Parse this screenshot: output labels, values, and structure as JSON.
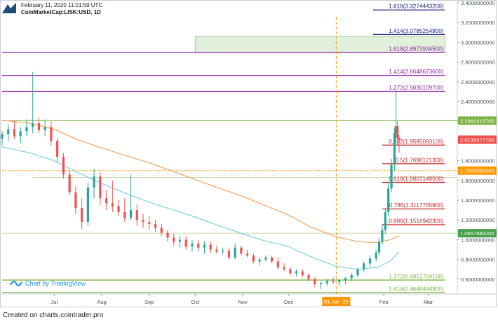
{
  "header": {
    "date": "February 11, 2020 11:01:59 UTC",
    "symbol": "CoinMarketCap:LISK:USD, 1D"
  },
  "branding": {
    "chart_by": "Chart by TradingView"
  },
  "footer": {
    "credit": "Created on charts.cointrader.pro"
  },
  "icons": {
    "logo": "cointrader-logo-icon",
    "tradingview": "tradingview-icon"
  },
  "colors": {
    "up": "#26a69a",
    "down": "#ef5350",
    "ma_long": "#f5a25d",
    "ma_short": "#7fd1e0",
    "fib_purple": "#8e24aa",
    "fib_red": "#c62828",
    "fib_green": "#7cb342",
    "level_orange": "#ff9800",
    "zone_fill": "#d7ebcd",
    "grid": "#e9edf2",
    "axis_text": "#4c525e"
  },
  "chart_data": {
    "type": "candlestick",
    "title": "",
    "xlabel": "",
    "ylabel": "",
    "ylim": [
      0.45,
      3.4
    ],
    "grid": false,
    "y_ticks": [
      "3.4000000000",
      "3.2000000000",
      "3.0000000000",
      "2.8000000000",
      "2.6000000000",
      "2.4000000000",
      "2.2000000000",
      "2.0000000000",
      "1.8000000000",
      "1.6000000000",
      "1.4000000000",
      "1.2000000000",
      "1.0000000000",
      "0.8000000000",
      "0.6000000000"
    ],
    "x_ticks": [
      {
        "label": "Jul",
        "date": "2019-07-01"
      },
      {
        "label": "Aug",
        "date": "2019-08-01"
      },
      {
        "label": "Sep",
        "date": "2019-09-01"
      },
      {
        "label": "Oct",
        "date": "2019-10-01"
      },
      {
        "label": "Nov",
        "date": "2019-11-01"
      },
      {
        "label": "Dec",
        "date": "2019-12-01"
      },
      {
        "label": "Feb",
        "date": "2020-02-01"
      },
      {
        "label": "Mar",
        "date": "2020-03-01"
      }
    ],
    "x_range": [
      "2019-05-28",
      "2020-03-20"
    ],
    "marker": {
      "date": "2020-01-01",
      "label": "01 Jan '20"
    },
    "price_labels": [
      {
        "value": 2.20603157,
        "text": "2.2060315700",
        "color": "#7cb342"
      },
      {
        "value": 2.01354777,
        "text": "2.0135477700",
        "color": "#ef5350"
      },
      {
        "value": 1.7,
        "text": "1.7000000000",
        "color": "#ff9800"
      },
      {
        "value": 1.06579832,
        "text": "1.0657983200",
        "color": "#43a047"
      }
    ],
    "fib_levels": [
      {
        "label": "1.618(3.3274443200)",
        "value": 3.32744432,
        "color": "#1a237e",
        "from": "2020-01-25",
        "to": "2020-03-12"
      },
      {
        "label": "1.414(3.0785254900)",
        "value": 3.07852549,
        "color": "#1a237e",
        "from": "2020-01-25",
        "to": "2020-03-12"
      },
      {
        "label": "1.618(2.8973934500)",
        "value": 2.89739345,
        "color": "#8e24aa",
        "from": "2019-05-28",
        "to": "2020-03-12"
      },
      {
        "label": "1.414(2.6648673600)",
        "value": 2.66486736,
        "color": "#8e24aa",
        "from": "2019-05-28",
        "to": "2020-03-12"
      },
      {
        "label": "1.272(2.5030109700)",
        "value": 2.50301097,
        "color": "#8e24aa",
        "from": "2019-05-28",
        "to": "2020-03-12"
      },
      {
        "label": "0.382(1.9585093100)",
        "value": 1.95850931,
        "color": "#c62828",
        "from": "2020-01-31",
        "to": "2020-03-12"
      },
      {
        "label": "0.5(1.7696121300)",
        "value": 1.76961213,
        "color": "#c62828",
        "from": "2020-01-31",
        "to": "2020-03-12"
      },
      {
        "label": "0.618(1.5807149500)",
        "value": 1.58071495,
        "color": "#c62828",
        "from": "2020-01-31",
        "to": "2020-03-12"
      },
      {
        "label": "0.786(1.3117765900)",
        "value": 1.31177659,
        "color": "#c62828",
        "from": "2020-01-31",
        "to": "2020-03-12"
      },
      {
        "label": "0.886(1.1516942300)",
        "value": 1.15169423,
        "color": "#c62828",
        "from": "2020-01-31",
        "to": "2020-03-12"
      },
      {
        "label": "1.272(0.5912704100)",
        "value": 0.59127041,
        "color": "#7cb342",
        "from": "2019-05-28",
        "to": "2020-03-12"
      },
      {
        "label": "1.414(0.4648484900)",
        "value": 0.46484849,
        "color": "#7cb342",
        "from": "2019-05-28",
        "to": "2020-03-12"
      }
    ],
    "hlines": [
      {
        "value": 2.20603157,
        "color": "#7cb342",
        "from": "2019-05-28",
        "to": "2020-03-20"
      },
      {
        "value": 1.7,
        "color": "#ff9800",
        "from": "2019-05-28",
        "to": "2020-03-20",
        "dashed": true
      },
      {
        "value": 1.63,
        "color": "#c5d4a8",
        "from": "2019-06-17",
        "to": "2020-03-20"
      },
      {
        "value": 1.06579832,
        "color": "#c5d4a8",
        "from": "2019-05-28",
        "to": "2020-03-20"
      }
    ],
    "zone": {
      "from": "2019-10-01",
      "to": "2020-03-12",
      "y_low": 2.9,
      "y_high": 3.06
    },
    "ma_long": {
      "name": "",
      "points": [
        [
          "2019-05-28",
          2.21
        ],
        [
          "2019-06-15",
          2.18
        ],
        [
          "2019-07-01",
          2.12
        ],
        [
          "2019-07-15",
          2.02
        ],
        [
          "2019-08-01",
          1.93
        ],
        [
          "2019-08-15",
          1.86
        ],
        [
          "2019-09-01",
          1.78
        ],
        [
          "2019-09-15",
          1.7
        ],
        [
          "2019-10-01",
          1.61
        ],
        [
          "2019-10-15",
          1.53
        ],
        [
          "2019-11-01",
          1.44
        ],
        [
          "2019-11-15",
          1.35
        ],
        [
          "2019-12-01",
          1.25
        ],
        [
          "2019-12-15",
          1.13
        ],
        [
          "2020-01-01",
          1.03
        ],
        [
          "2020-01-15",
          0.98
        ],
        [
          "2020-01-28",
          0.97
        ],
        [
          "2020-02-05",
          1.0
        ],
        [
          "2020-02-11",
          1.04
        ]
      ]
    },
    "ma_short": {
      "name": "",
      "points": [
        [
          "2019-05-28",
          1.94
        ],
        [
          "2019-06-15",
          1.88
        ],
        [
          "2019-07-01",
          1.8
        ],
        [
          "2019-07-15",
          1.69
        ],
        [
          "2019-08-01",
          1.57
        ],
        [
          "2019-08-15",
          1.48
        ],
        [
          "2019-09-01",
          1.38
        ],
        [
          "2019-09-15",
          1.31
        ],
        [
          "2019-10-01",
          1.23
        ],
        [
          "2019-10-15",
          1.15
        ],
        [
          "2019-11-01",
          1.06
        ],
        [
          "2019-11-15",
          0.99
        ],
        [
          "2019-12-01",
          0.93
        ],
        [
          "2019-12-15",
          0.83
        ],
        [
          "2020-01-01",
          0.73
        ],
        [
          "2020-01-15",
          0.7
        ],
        [
          "2020-01-28",
          0.72
        ],
        [
          "2020-02-05",
          0.78
        ],
        [
          "2020-02-11",
          0.88
        ]
      ]
    },
    "candles": [
      [
        "2019-05-28",
        2.02,
        2.1,
        1.95,
        2.07
      ],
      [
        "2019-06-01",
        2.07,
        2.17,
        2.0,
        2.12
      ],
      [
        "2019-06-05",
        2.12,
        2.2,
        2.02,
        2.05
      ],
      [
        "2019-06-09",
        2.05,
        2.14,
        1.98,
        2.1
      ],
      [
        "2019-06-13",
        2.1,
        2.22,
        2.05,
        2.14
      ],
      [
        "2019-06-17",
        2.14,
        2.7,
        2.08,
        2.18
      ],
      [
        "2019-06-21",
        2.18,
        2.24,
        2.08,
        2.11
      ],
      [
        "2019-06-25",
        2.11,
        2.22,
        2.05,
        2.14
      ],
      [
        "2019-06-29",
        2.14,
        2.2,
        1.95,
        2.0
      ],
      [
        "2019-07-03",
        2.0,
        2.03,
        1.78,
        1.84
      ],
      [
        "2019-07-07",
        1.84,
        1.88,
        1.62,
        1.66
      ],
      [
        "2019-07-11",
        1.66,
        1.7,
        1.45,
        1.48
      ],
      [
        "2019-07-15",
        1.48,
        1.54,
        1.26,
        1.32
      ],
      [
        "2019-07-19",
        1.32,
        1.42,
        1.11,
        1.18
      ],
      [
        "2019-07-23",
        1.18,
        1.58,
        1.14,
        1.53
      ],
      [
        "2019-07-27",
        1.53,
        1.72,
        1.42,
        1.64
      ],
      [
        "2019-07-31",
        1.64,
        1.68,
        1.35,
        1.42
      ],
      [
        "2019-08-04",
        1.42,
        1.5,
        1.3,
        1.37
      ],
      [
        "2019-08-08",
        1.37,
        1.6,
        1.28,
        1.34
      ],
      [
        "2019-08-12",
        1.34,
        1.4,
        1.24,
        1.28
      ],
      [
        "2019-08-16",
        1.28,
        1.42,
        1.18,
        1.22
      ],
      [
        "2019-08-20",
        1.22,
        1.66,
        1.2,
        1.3
      ],
      [
        "2019-08-24",
        1.3,
        1.36,
        1.14,
        1.2
      ],
      [
        "2019-08-28",
        1.2,
        1.26,
        1.12,
        1.18
      ],
      [
        "2019-09-01",
        1.18,
        1.24,
        1.1,
        1.16
      ],
      [
        "2019-09-05",
        1.16,
        1.2,
        1.08,
        1.12
      ],
      [
        "2019-09-09",
        1.12,
        1.16,
        1.04,
        1.07
      ],
      [
        "2019-09-13",
        1.07,
        1.1,
        0.98,
        1.02
      ],
      [
        "2019-09-17",
        1.02,
        1.06,
        0.94,
        0.98
      ],
      [
        "2019-09-21",
        0.98,
        1.04,
        0.92,
        1.0
      ],
      [
        "2019-09-25",
        1.0,
        1.04,
        0.9,
        0.93
      ],
      [
        "2019-09-29",
        0.93,
        1.0,
        0.88,
        0.96
      ],
      [
        "2019-10-03",
        0.96,
        1.0,
        0.88,
        0.92
      ],
      [
        "2019-10-07",
        0.92,
        0.98,
        0.86,
        0.95
      ],
      [
        "2019-10-11",
        0.95,
        0.98,
        0.87,
        0.9
      ],
      [
        "2019-10-15",
        0.9,
        0.94,
        0.86,
        0.88
      ],
      [
        "2019-10-19",
        0.88,
        0.92,
        0.85,
        0.89
      ],
      [
        "2019-10-23",
        0.89,
        0.92,
        0.8,
        0.82
      ],
      [
        "2019-10-27",
        0.82,
        0.96,
        0.8,
        0.92
      ],
      [
        "2019-10-31",
        0.92,
        0.94,
        0.84,
        0.86
      ],
      [
        "2019-11-04",
        0.86,
        0.9,
        0.82,
        0.84
      ],
      [
        "2019-11-08",
        0.84,
        0.86,
        0.76,
        0.78
      ],
      [
        "2019-11-12",
        0.78,
        0.82,
        0.74,
        0.8
      ],
      [
        "2019-11-16",
        0.8,
        0.84,
        0.78,
        0.82
      ],
      [
        "2019-11-20",
        0.82,
        0.84,
        0.76,
        0.78
      ],
      [
        "2019-11-24",
        0.78,
        0.82,
        0.7,
        0.72
      ],
      [
        "2019-11-28",
        0.72,
        0.76,
        0.68,
        0.7
      ],
      [
        "2019-12-02",
        0.7,
        0.72,
        0.64,
        0.66
      ],
      [
        "2019-12-06",
        0.66,
        0.7,
        0.63,
        0.68
      ],
      [
        "2019-12-10",
        0.68,
        0.7,
        0.62,
        0.64
      ],
      [
        "2019-12-14",
        0.64,
        0.66,
        0.58,
        0.6
      ],
      [
        "2019-12-18",
        0.6,
        0.62,
        0.52,
        0.55
      ],
      [
        "2019-12-22",
        0.55,
        0.58,
        0.5,
        0.56
      ],
      [
        "2019-12-26",
        0.56,
        0.6,
        0.53,
        0.58
      ],
      [
        "2019-12-30",
        0.58,
        0.62,
        0.55,
        0.57
      ],
      [
        "2020-01-03",
        0.57,
        0.6,
        0.53,
        0.59
      ],
      [
        "2020-01-07",
        0.59,
        0.62,
        0.55,
        0.61
      ],
      [
        "2020-01-11",
        0.61,
        0.66,
        0.58,
        0.64
      ],
      [
        "2020-01-15",
        0.64,
        0.72,
        0.62,
        0.7
      ],
      [
        "2020-01-19",
        0.7,
        0.78,
        0.67,
        0.76
      ],
      [
        "2020-01-23",
        0.76,
        0.84,
        0.72,
        0.81
      ],
      [
        "2020-01-27",
        0.81,
        0.9,
        0.78,
        0.87
      ],
      [
        "2020-01-29",
        0.87,
        1.02,
        0.84,
        0.98
      ],
      [
        "2020-01-31",
        0.98,
        1.16,
        0.95,
        1.1
      ],
      [
        "2020-02-02",
        1.1,
        1.32,
        1.06,
        1.28
      ],
      [
        "2020-02-04",
        1.28,
        1.58,
        1.24,
        1.52
      ],
      [
        "2020-02-06",
        1.52,
        1.82,
        1.48,
        1.76
      ],
      [
        "2020-02-08",
        1.76,
        2.14,
        1.7,
        2.08
      ],
      [
        "2020-02-09",
        2.08,
        2.52,
        2.02,
        2.15
      ],
      [
        "2020-02-10",
        2.15,
        2.2,
        1.96,
        2.03
      ],
      [
        "2020-02-11",
        2.03,
        2.06,
        1.88,
        2.01
      ]
    ]
  }
}
